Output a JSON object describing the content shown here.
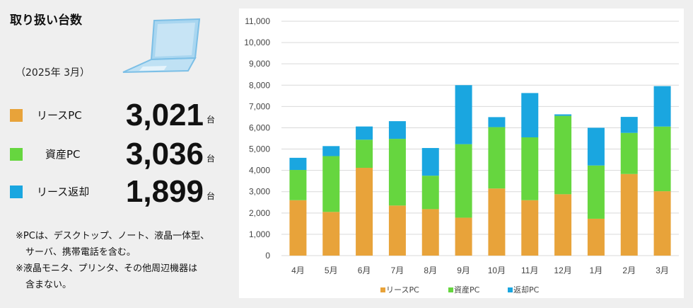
{
  "title": "取り扱い台数",
  "period": "（2025年 3月）",
  "stats": [
    {
      "label": "リースPC",
      "value": "3,021",
      "unit": "台",
      "color": "#e8a33a"
    },
    {
      "label": "資産PC",
      "value": "3,036",
      "unit": "台",
      "color": "#66d63f"
    },
    {
      "label": "リース返却",
      "value": "1,899",
      "unit": "台",
      "color": "#1aa6e0"
    }
  ],
  "notes": [
    "※PCは、デスクトップ、ノート、液晶一体型、",
    "サーバ、携帯電話を含む。",
    "※液晶モニタ、プリンタ、その他周辺機器は",
    "含まない。"
  ],
  "icons": {
    "laptop": "laptop-icon"
  },
  "chart_data": {
    "type": "bar",
    "stacked": true,
    "categories": [
      "4月",
      "5月",
      "6月",
      "7月",
      "8月",
      "9月",
      "10月",
      "11月",
      "12月",
      "1月",
      "2月",
      "3月"
    ],
    "series": [
      {
        "name": "リースPC",
        "color": "#e8a33a",
        "values": [
          2600,
          2050,
          4120,
          2350,
          2180,
          1780,
          3150,
          2600,
          2880,
          1730,
          3830,
          3021
        ]
      },
      {
        "name": "資産PC",
        "color": "#66d63f",
        "values": [
          1420,
          2620,
          1320,
          3130,
          1570,
          3450,
          2880,
          2950,
          3680,
          2500,
          1930,
          3036
        ]
      },
      {
        "name": "返却PC",
        "color": "#1aa6e0",
        "values": [
          570,
          470,
          620,
          830,
          1300,
          2770,
          470,
          2080,
          70,
          1770,
          750,
          1899
        ]
      }
    ],
    "yticks": [
      "0",
      "1,000",
      "2,000",
      "3,000",
      "4,000",
      "5,000",
      "6,000",
      "7,000",
      "8,000",
      "9,000",
      "10,000",
      "11,000"
    ],
    "ylim": [
      0,
      11000
    ],
    "grid": true,
    "legend": "bottom"
  }
}
